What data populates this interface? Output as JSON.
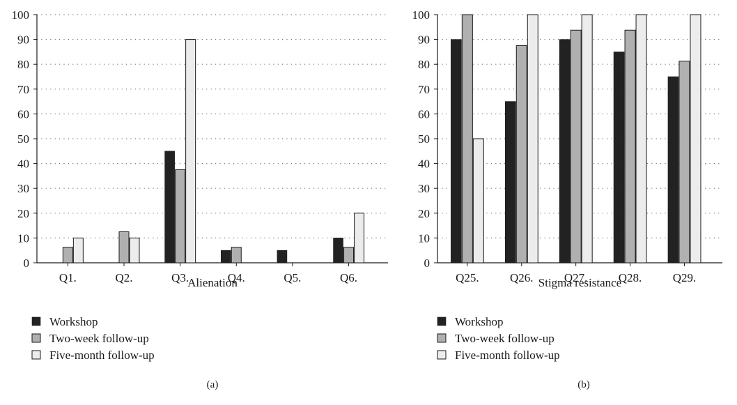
{
  "colors": {
    "workshop": "#222222",
    "two_week": "#b0b0b0",
    "five_month": "#ececec",
    "axis": "#1a1a1a",
    "grid": "#7a7a7a"
  },
  "chart_data": [
    {
      "type": "bar",
      "panel_label": "(a)",
      "xlabel": "Alienation",
      "ylabel": "",
      "title": "",
      "categories": [
        "Q1.",
        "Q2.",
        "Q3.",
        "Q4.",
        "Q5.",
        "Q6."
      ],
      "ylim": [
        0,
        100
      ],
      "yticks": [
        0,
        10,
        20,
        30,
        40,
        50,
        60,
        70,
        80,
        90,
        100
      ],
      "grid": "horizontal dotted",
      "legend_position": "bottom-left",
      "series": [
        {
          "name": "Workshop",
          "values": [
            0,
            0,
            45,
            5,
            5,
            10
          ]
        },
        {
          "name": "Two-week follow-up",
          "values": [
            6.25,
            12.5,
            37.5,
            6.25,
            0,
            6.25
          ]
        },
        {
          "name": "Five-month follow-up",
          "values": [
            10,
            10,
            90,
            0,
            0,
            20
          ]
        }
      ]
    },
    {
      "type": "bar",
      "panel_label": "(b)",
      "xlabel": "Stigma resistance",
      "ylabel": "",
      "title": "",
      "categories": [
        "Q25.",
        "Q26.",
        "Q27.",
        "Q28.",
        "Q29."
      ],
      "ylim": [
        0,
        100
      ],
      "yticks": [
        0,
        10,
        20,
        30,
        40,
        50,
        60,
        70,
        80,
        90,
        100
      ],
      "grid": "horizontal dotted",
      "legend_position": "bottom-left",
      "series": [
        {
          "name": "Workshop",
          "values": [
            90,
            65,
            90,
            85,
            75
          ]
        },
        {
          "name": "Two-week follow-up",
          "values": [
            100,
            87.5,
            93.75,
            93.75,
            81.25
          ]
        },
        {
          "name": "Five-month follow-up",
          "values": [
            50,
            100,
            100,
            100,
            100
          ]
        }
      ]
    }
  ]
}
